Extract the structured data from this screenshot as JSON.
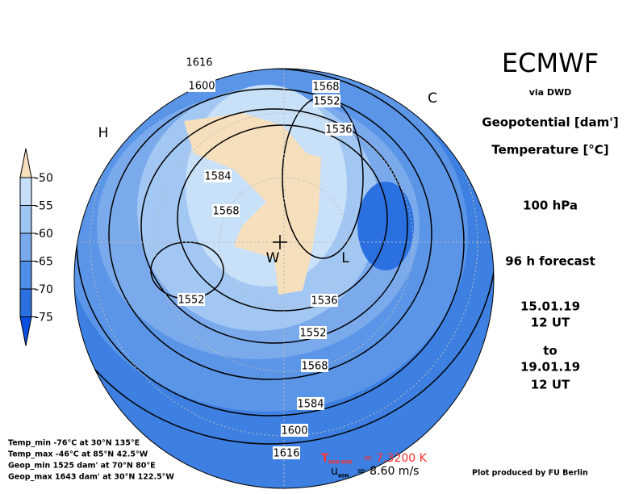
{
  "header": {
    "title": "ECMWF",
    "source": "via DWD",
    "field1": "Geopotential [dam']",
    "field2": "Temperature [°C]",
    "level": "100 hPa",
    "forecast": "96 h forecast",
    "init_date": "15.01.19",
    "init_time": "12 UT",
    "to": "to",
    "valid_date": "19.01.19",
    "valid_time": "12 UT"
  },
  "colorbar": {
    "ticks": [
      -50,
      -55,
      -60,
      -65,
      -70,
      -75
    ],
    "colors": [
      "#f5dfbd",
      "#c6def8",
      "#9ec5f2",
      "#78a9ec",
      "#4f8ee6",
      "#2b70e0",
      "#0b4fe0"
    ]
  },
  "contour_labels": [
    1616,
    1600,
    1568,
    1552,
    1536,
    1584,
    1568,
    1552,
    1536,
    1552,
    1568,
    1584,
    1600,
    1616
  ],
  "markers": [
    "H",
    "C",
    "W",
    "L"
  ],
  "stats": [
    "Temp_min -76°C at 30°N 135°E",
    "Temp_max -46°C at 85°N 42.5°W",
    "Geop_min 1525 dam' at 70°N 80°E",
    "Geop_max 1643 dam' at 30°N 122.5°W"
  ],
  "diagnostics": {
    "t_label": "T",
    "t_sub": "90N-60N",
    "t_value": "= 7.3200 K",
    "u_label": "u",
    "u_sub": "60N",
    "u_value": "= 8.60 m/s"
  },
  "credit": "Plot produced by FU Berlin"
}
